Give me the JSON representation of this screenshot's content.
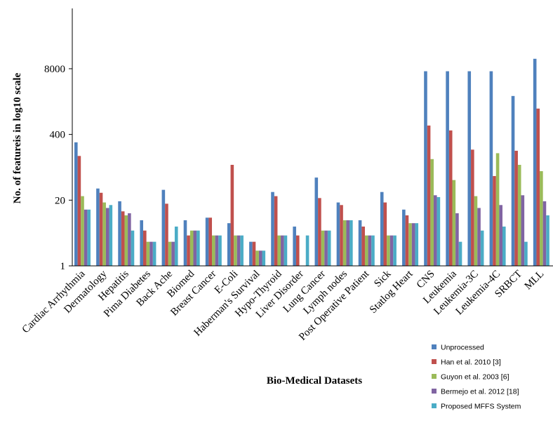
{
  "chart_data": {
    "type": "bar",
    "scale": "log10",
    "xlabel": "Bio-Medical Datasets",
    "ylabel": "No. of featureis in log10 scale",
    "yticks": [
      1,
      20,
      400,
      8000
    ],
    "ylim": [
      1,
      125000
    ],
    "grid": false,
    "legend_position": "bottom-right",
    "categories": [
      "Cardiac Arrhythmia",
      "Dermatology",
      "Hepatitis",
      "Pima Diabetes",
      "Back Ache",
      "Biomed",
      "Breast Cancer",
      "E-Coli",
      "Haberman's Survival",
      "Hypo-Thyroid",
      "Liver Disorder",
      "Lung Cancer",
      "Lymph nodes",
      "Post Operative Patient",
      "Sick",
      "Statlog Heart",
      "CNS",
      "Leukemia",
      "Leukemia-3C",
      "Leukemia-4C",
      "SRBCT",
      "MLL"
    ],
    "series": [
      {
        "name": "Unprocessed",
        "color": "#4F81BD",
        "values": [
          279,
          34,
          19,
          8,
          32,
          8,
          9,
          7,
          3,
          29,
          6,
          56,
          18,
          8,
          29,
          13,
          7129,
          7129,
          7129,
          7129,
          2308,
          12582
        ]
      },
      {
        "name": "Han et al. 2010 [3]",
        "color": "#C0504D",
        "values": [
          150,
          28,
          12,
          5,
          17,
          4,
          9,
          100,
          3,
          24,
          4,
          22,
          16,
          6,
          18,
          10,
          600,
          480,
          200,
          60,
          190,
          1300
        ]
      },
      {
        "name": "Guyon et al. 2003 [6]",
        "color": "#9BBB59",
        "values": [
          24,
          18,
          10,
          3,
          3,
          5,
          4,
          4,
          2,
          4,
          0,
          5,
          8,
          4,
          4,
          7,
          130,
          50,
          24,
          170,
          100,
          75
        ]
      },
      {
        "name": "Bermejo et al. 2012 [18]",
        "color": "#8064A2",
        "values": [
          13,
          14,
          11,
          3,
          3,
          5,
          4,
          4,
          2,
          4,
          0,
          5,
          8,
          4,
          4,
          7,
          25,
          11,
          14,
          16,
          25,
          19
        ]
      },
      {
        "name": "Proposed  MFFS System",
        "color": "#4BACC6",
        "values": [
          13,
          16,
          5,
          3,
          6,
          5,
          4,
          4,
          2,
          4,
          4,
          5,
          8,
          4,
          4,
          7,
          23,
          3,
          5,
          6,
          3,
          10
        ]
      }
    ]
  }
}
